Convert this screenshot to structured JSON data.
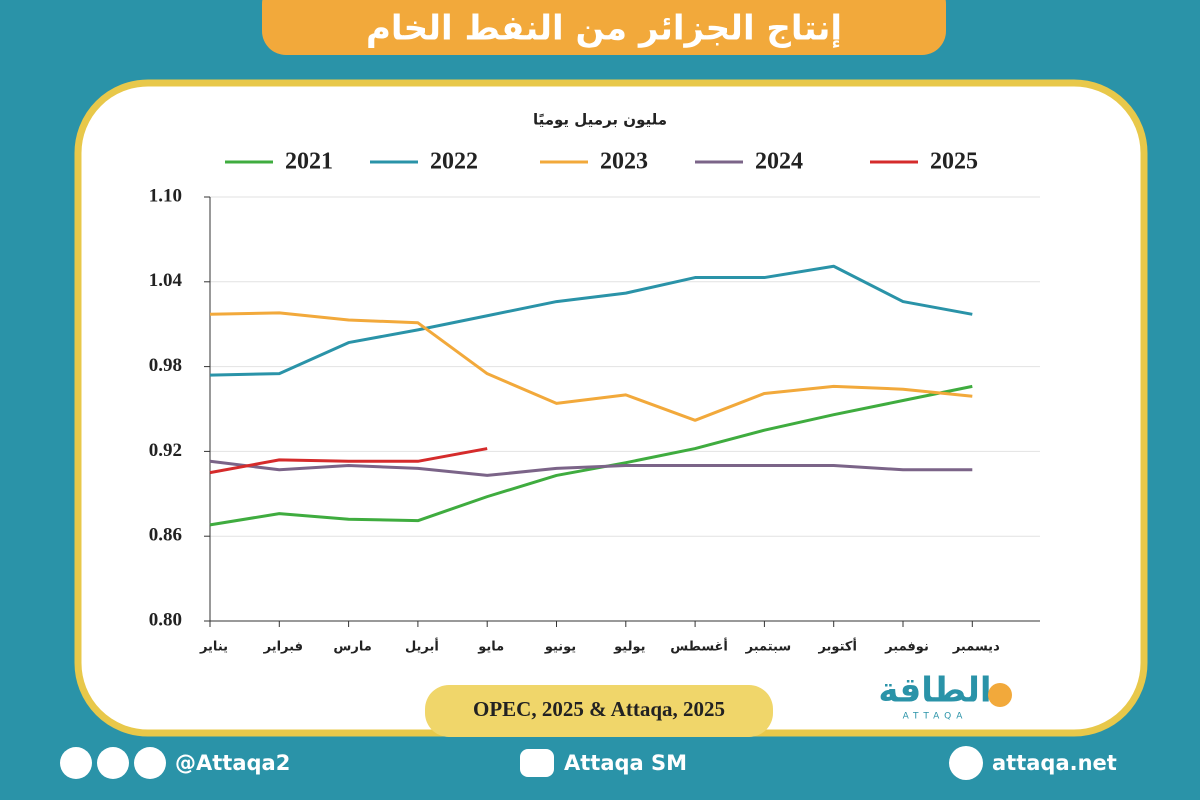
{
  "chart_data": {
    "type": "line",
    "title": "إنتاج الجزائر من النفط الخام",
    "y_label": "مليون برميل يوميًا",
    "source": "OPEC, 2025 & Attaqa, 2025",
    "categories": [
      "يناير",
      "فبراير",
      "مارس",
      "أبريل",
      "مايو",
      "يونيو",
      "يوليو",
      "أغسطس",
      "سبتمبر",
      "أكتوبر",
      "نوفمبر",
      "ديسمبر"
    ],
    "series": [
      {
        "name": "2021",
        "color": "#3fac3f",
        "values": [
          0.868,
          0.876,
          0.872,
          0.871,
          0.888,
          0.903,
          0.912,
          0.922,
          0.935,
          0.946,
          0.956,
          0.966
        ]
      },
      {
        "name": "2022",
        "color": "#2a93a8",
        "values": [
          0.974,
          0.975,
          0.997,
          1.006,
          1.016,
          1.026,
          1.032,
          1.043,
          1.043,
          1.051,
          1.026,
          1.017
        ]
      },
      {
        "name": "2023",
        "color": "#f2a93b",
        "values": [
          1.017,
          1.018,
          1.013,
          1.011,
          0.975,
          0.954,
          0.96,
          0.942,
          0.961,
          0.966,
          0.964,
          0.959
        ]
      },
      {
        "name": "2024",
        "color": "#7b6488",
        "values": [
          0.913,
          0.907,
          0.91,
          0.908,
          0.903,
          0.908,
          0.91,
          0.91,
          0.91,
          0.91,
          0.907,
          0.907
        ]
      },
      {
        "name": "2025",
        "color": "#d52b2b",
        "values": [
          0.905,
          0.914,
          0.913,
          0.913,
          0.922,
          null,
          null,
          null,
          null,
          null,
          null,
          null
        ]
      }
    ],
    "ylim": [
      0.8,
      1.1
    ],
    "yticks": [
      {
        "value": 0.8,
        "label": "0.80"
      },
      {
        "value": 0.86,
        "label": "0.86"
      },
      {
        "value": 0.92,
        "label": "0.92"
      },
      {
        "value": 0.98,
        "label": "0.98"
      },
      {
        "value": 1.04,
        "label": "1.04"
      },
      {
        "value": 1.1,
        "label": "1.10"
      }
    ],
    "grid": true
  },
  "footer": {
    "social": "@Attaqa2",
    "youtube": "Attaqa SM",
    "website": "attaqa.net"
  },
  "logo": {
    "arabic": "الطاقة",
    "latin": "ATTAQA"
  }
}
